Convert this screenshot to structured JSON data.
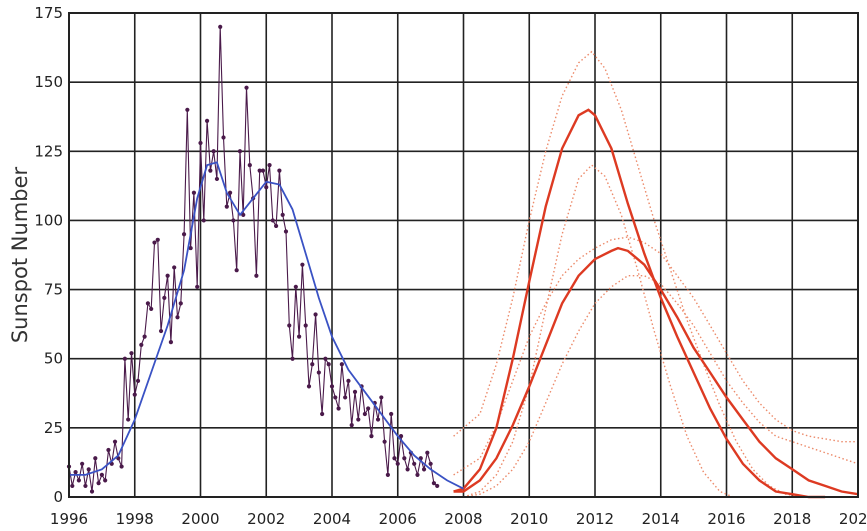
{
  "chart_data": {
    "type": "line",
    "title": "",
    "xlabel": "",
    "ylabel": "Sunspot Number",
    "xlim": [
      1996,
      2020
    ],
    "ylim": [
      0,
      175
    ],
    "xticks": [
      1996,
      1998,
      2000,
      2002,
      2004,
      2006,
      2008,
      2010,
      2012,
      2014,
      2016,
      2018,
      2020
    ],
    "xtick_labels": [
      "1996",
      "1998",
      "2000",
      "2002",
      "2004",
      "2006",
      "2008",
      "2010",
      "2012",
      "2014",
      "2016",
      "2018",
      "2020"
    ],
    "yticks": [
      0,
      25,
      50,
      75,
      100,
      125,
      150,
      175
    ],
    "ytick_labels": [
      "0",
      "25",
      "50",
      "75",
      "100",
      "125",
      "150",
      "175"
    ],
    "grid": true,
    "colors": {
      "observed": "#4a1a4a",
      "smoothed": "#3a52c4",
      "prediction": "#dd3a22",
      "prediction_bounds": "#ec8a6a"
    },
    "series": [
      {
        "style": "monthly",
        "x": [
          1996.0,
          1996.1,
          1996.2,
          1996.3,
          1996.4,
          1996.5,
          1996.6,
          1996.7,
          1996.8,
          1996.9,
          1997.0,
          1997.1,
          1997.2,
          1997.3,
          1997.4,
          1997.5,
          1997.6,
          1997.7,
          1997.8,
          1997.9,
          1998.0,
          1998.1,
          1998.2,
          1998.3,
          1998.4,
          1998.5,
          1998.6,
          1998.7,
          1998.8,
          1998.9,
          1999.0,
          1999.1,
          1999.2,
          1999.3,
          1999.4,
          1999.5,
          1999.6,
          1999.7,
          1999.8,
          1999.9,
          2000.0,
          2000.1,
          2000.2,
          2000.3,
          2000.4,
          2000.5,
          2000.6,
          2000.7,
          2000.8,
          2000.9,
          2001.0,
          2001.1,
          2001.2,
          2001.3,
          2001.4,
          2001.5,
          2001.6,
          2001.7,
          2001.8,
          2001.9,
          2002.0,
          2002.1,
          2002.2,
          2002.3,
          2002.4,
          2002.5,
          2002.6,
          2002.7,
          2002.8,
          2002.9,
          2003.0,
          2003.1,
          2003.2,
          2003.3,
          2003.4,
          2003.5,
          2003.6,
          2003.7,
          2003.8,
          2003.9,
          2004.0,
          2004.1,
          2004.2,
          2004.3,
          2004.4,
          2004.5,
          2004.6,
          2004.7,
          2004.8,
          2004.9,
          2005.0,
          2005.1,
          2005.2,
          2005.3,
          2005.4,
          2005.5,
          2005.6,
          2005.7,
          2005.8,
          2005.9,
          2006.0,
          2006.1,
          2006.2,
          2006.3,
          2006.4,
          2006.5,
          2006.6,
          2006.7,
          2006.8,
          2006.9,
          2007.0,
          2007.1,
          2007.2
        ],
        "values": [
          11,
          4,
          9,
          6,
          12,
          4,
          10,
          2,
          14,
          5,
          8,
          6,
          17,
          12,
          20,
          14,
          11,
          50,
          28,
          52,
          37,
          42,
          55,
          58,
          70,
          68,
          92,
          93,
          60,
          72,
          80,
          56,
          83,
          65,
          70,
          95,
          140,
          90,
          110,
          76,
          128,
          100,
          136,
          118,
          125,
          115,
          170,
          130,
          105,
          110,
          100,
          82,
          125,
          102,
          148,
          120,
          108,
          80,
          118,
          118,
          112,
          120,
          100,
          98,
          118,
          102,
          96,
          62,
          50,
          76,
          58,
          84,
          62,
          40,
          48,
          66,
          45,
          30,
          50,
          48,
          40,
          36,
          32,
          48,
          36,
          42,
          26,
          38,
          28,
          40,
          30,
          32,
          22,
          34,
          28,
          36,
          20,
          8,
          30,
          14,
          12,
          22,
          14,
          10,
          16,
          12,
          8,
          14,
          10,
          16,
          12,
          5,
          4
        ]
      },
      {
        "style": "smoothed",
        "x": [
          1996.0,
          1996.5,
          1997.0,
          1997.5,
          1998.0,
          1998.5,
          1999.0,
          1999.5,
          1999.9,
          2000.2,
          2000.5,
          2000.8,
          2001.2,
          2001.6,
          2002.0,
          2002.4,
          2002.8,
          2003.2,
          2003.6,
          2004.0,
          2004.5,
          2005.0,
          2005.5,
          2006.0,
          2006.5,
          2007.0,
          2007.5,
          2008.0
        ],
        "values": [
          8,
          8,
          10,
          15,
          28,
          45,
          62,
          82,
          108,
          120,
          121,
          110,
          102,
          108,
          114,
          113,
          104,
          88,
          72,
          58,
          46,
          38,
          30,
          22,
          15,
          10,
          6,
          3
        ]
      },
      {
        "style": "prediction",
        "x": [
          2007.7,
          2008.0,
          2008.5,
          2009.0,
          2009.5,
          2010.0,
          2010.5,
          2011.0,
          2011.5,
          2011.8,
          2012.0,
          2012.5,
          2013.0,
          2013.5,
          2014.0,
          2014.5,
          2015.0,
          2015.5,
          2016.0,
          2016.5,
          2017.0,
          2017.5,
          2018.0,
          2018.5,
          2019.0
        ],
        "values": [
          2,
          3,
          10,
          25,
          50,
          78,
          105,
          126,
          138,
          140,
          138,
          126,
          106,
          88,
          72,
          58,
          45,
          32,
          21,
          12,
          6,
          2,
          1,
          0,
          0
        ]
      },
      {
        "style": "prediction",
        "x": [
          2007.7,
          2008.0,
          2008.5,
          2009.0,
          2009.5,
          2010.0,
          2010.5,
          2011.0,
          2011.5,
          2012.0,
          2012.5,
          2012.7,
          2013.0,
          2013.5,
          2014.0,
          2014.5,
          2015.0,
          2015.5,
          2016.0,
          2016.5,
          2017.0,
          2017.5,
          2018.0,
          2018.5,
          2019.0,
          2019.5,
          2020.0
        ],
        "values": [
          2,
          2,
          6,
          14,
          26,
          40,
          55,
          70,
          80,
          86,
          89,
          90,
          89,
          84,
          75,
          65,
          54,
          45,
          36,
          28,
          20,
          14,
          10,
          6,
          4,
          2,
          1
        ]
      },
      {
        "style": "bound",
        "x": [
          2007.7,
          2008.5,
          2009.0,
          2009.5,
          2010.0,
          2010.5,
          2011.0,
          2011.5,
          2011.9,
          2012.3,
          2012.8,
          2013.3,
          2013.8,
          2014.3,
          2014.8,
          2015.3,
          2015.8,
          2016.3,
          2016.8,
          2017.3,
          2017.8,
          2018.3
        ],
        "values": [
          22,
          30,
          48,
          72,
          100,
          125,
          145,
          157,
          161,
          155,
          140,
          120,
          100,
          82,
          64,
          48,
          33,
          20,
          10,
          4,
          1,
          0
        ]
      },
      {
        "style": "bound",
        "x": [
          2008.0,
          2008.5,
          2009.0,
          2009.5,
          2010.0,
          2010.5,
          2011.0,
          2011.5,
          2011.9,
          2012.3,
          2012.8,
          2013.3,
          2013.8,
          2014.3,
          2014.8,
          2015.3,
          2015.8,
          2016.2
        ],
        "values": [
          0,
          2,
          8,
          20,
          40,
          68,
          95,
          115,
          120,
          116,
          102,
          82,
          60,
          40,
          22,
          9,
          2,
          0
        ]
      },
      {
        "style": "bound",
        "x": [
          2007.7,
          2008.5,
          2009.0,
          2009.5,
          2010.0,
          2010.5,
          2011.0,
          2011.5,
          2012.0,
          2012.5,
          2013.0,
          2013.5,
          2014.0,
          2014.5,
          2015.0,
          2015.5,
          2016.0,
          2016.5,
          2017.0,
          2017.5,
          2018.0,
          2018.5,
          2019.0,
          2019.5,
          2020.0
        ],
        "values": [
          8,
          14,
          26,
          42,
          58,
          70,
          80,
          86,
          90,
          93,
          94,
          92,
          88,
          80,
          72,
          62,
          52,
          42,
          34,
          28,
          24,
          22,
          21,
          20,
          20
        ]
      },
      {
        "style": "bound",
        "x": [
          2008.0,
          2008.5,
          2009.0,
          2009.5,
          2010.0,
          2010.5,
          2011.0,
          2011.5,
          2012.0,
          2012.5,
          2013.0,
          2013.5,
          2014.0,
          2014.5,
          2015.0,
          2015.5,
          2016.0,
          2016.5,
          2017.0,
          2017.5,
          2018.0,
          2018.5,
          2019.0,
          2019.5,
          2020.0
        ],
        "values": [
          0,
          1,
          4,
          10,
          20,
          34,
          48,
          60,
          70,
          76,
          80,
          80,
          77,
          70,
          62,
          52,
          42,
          34,
          27,
          22,
          20,
          18,
          16,
          14,
          12
        ]
      }
    ]
  }
}
